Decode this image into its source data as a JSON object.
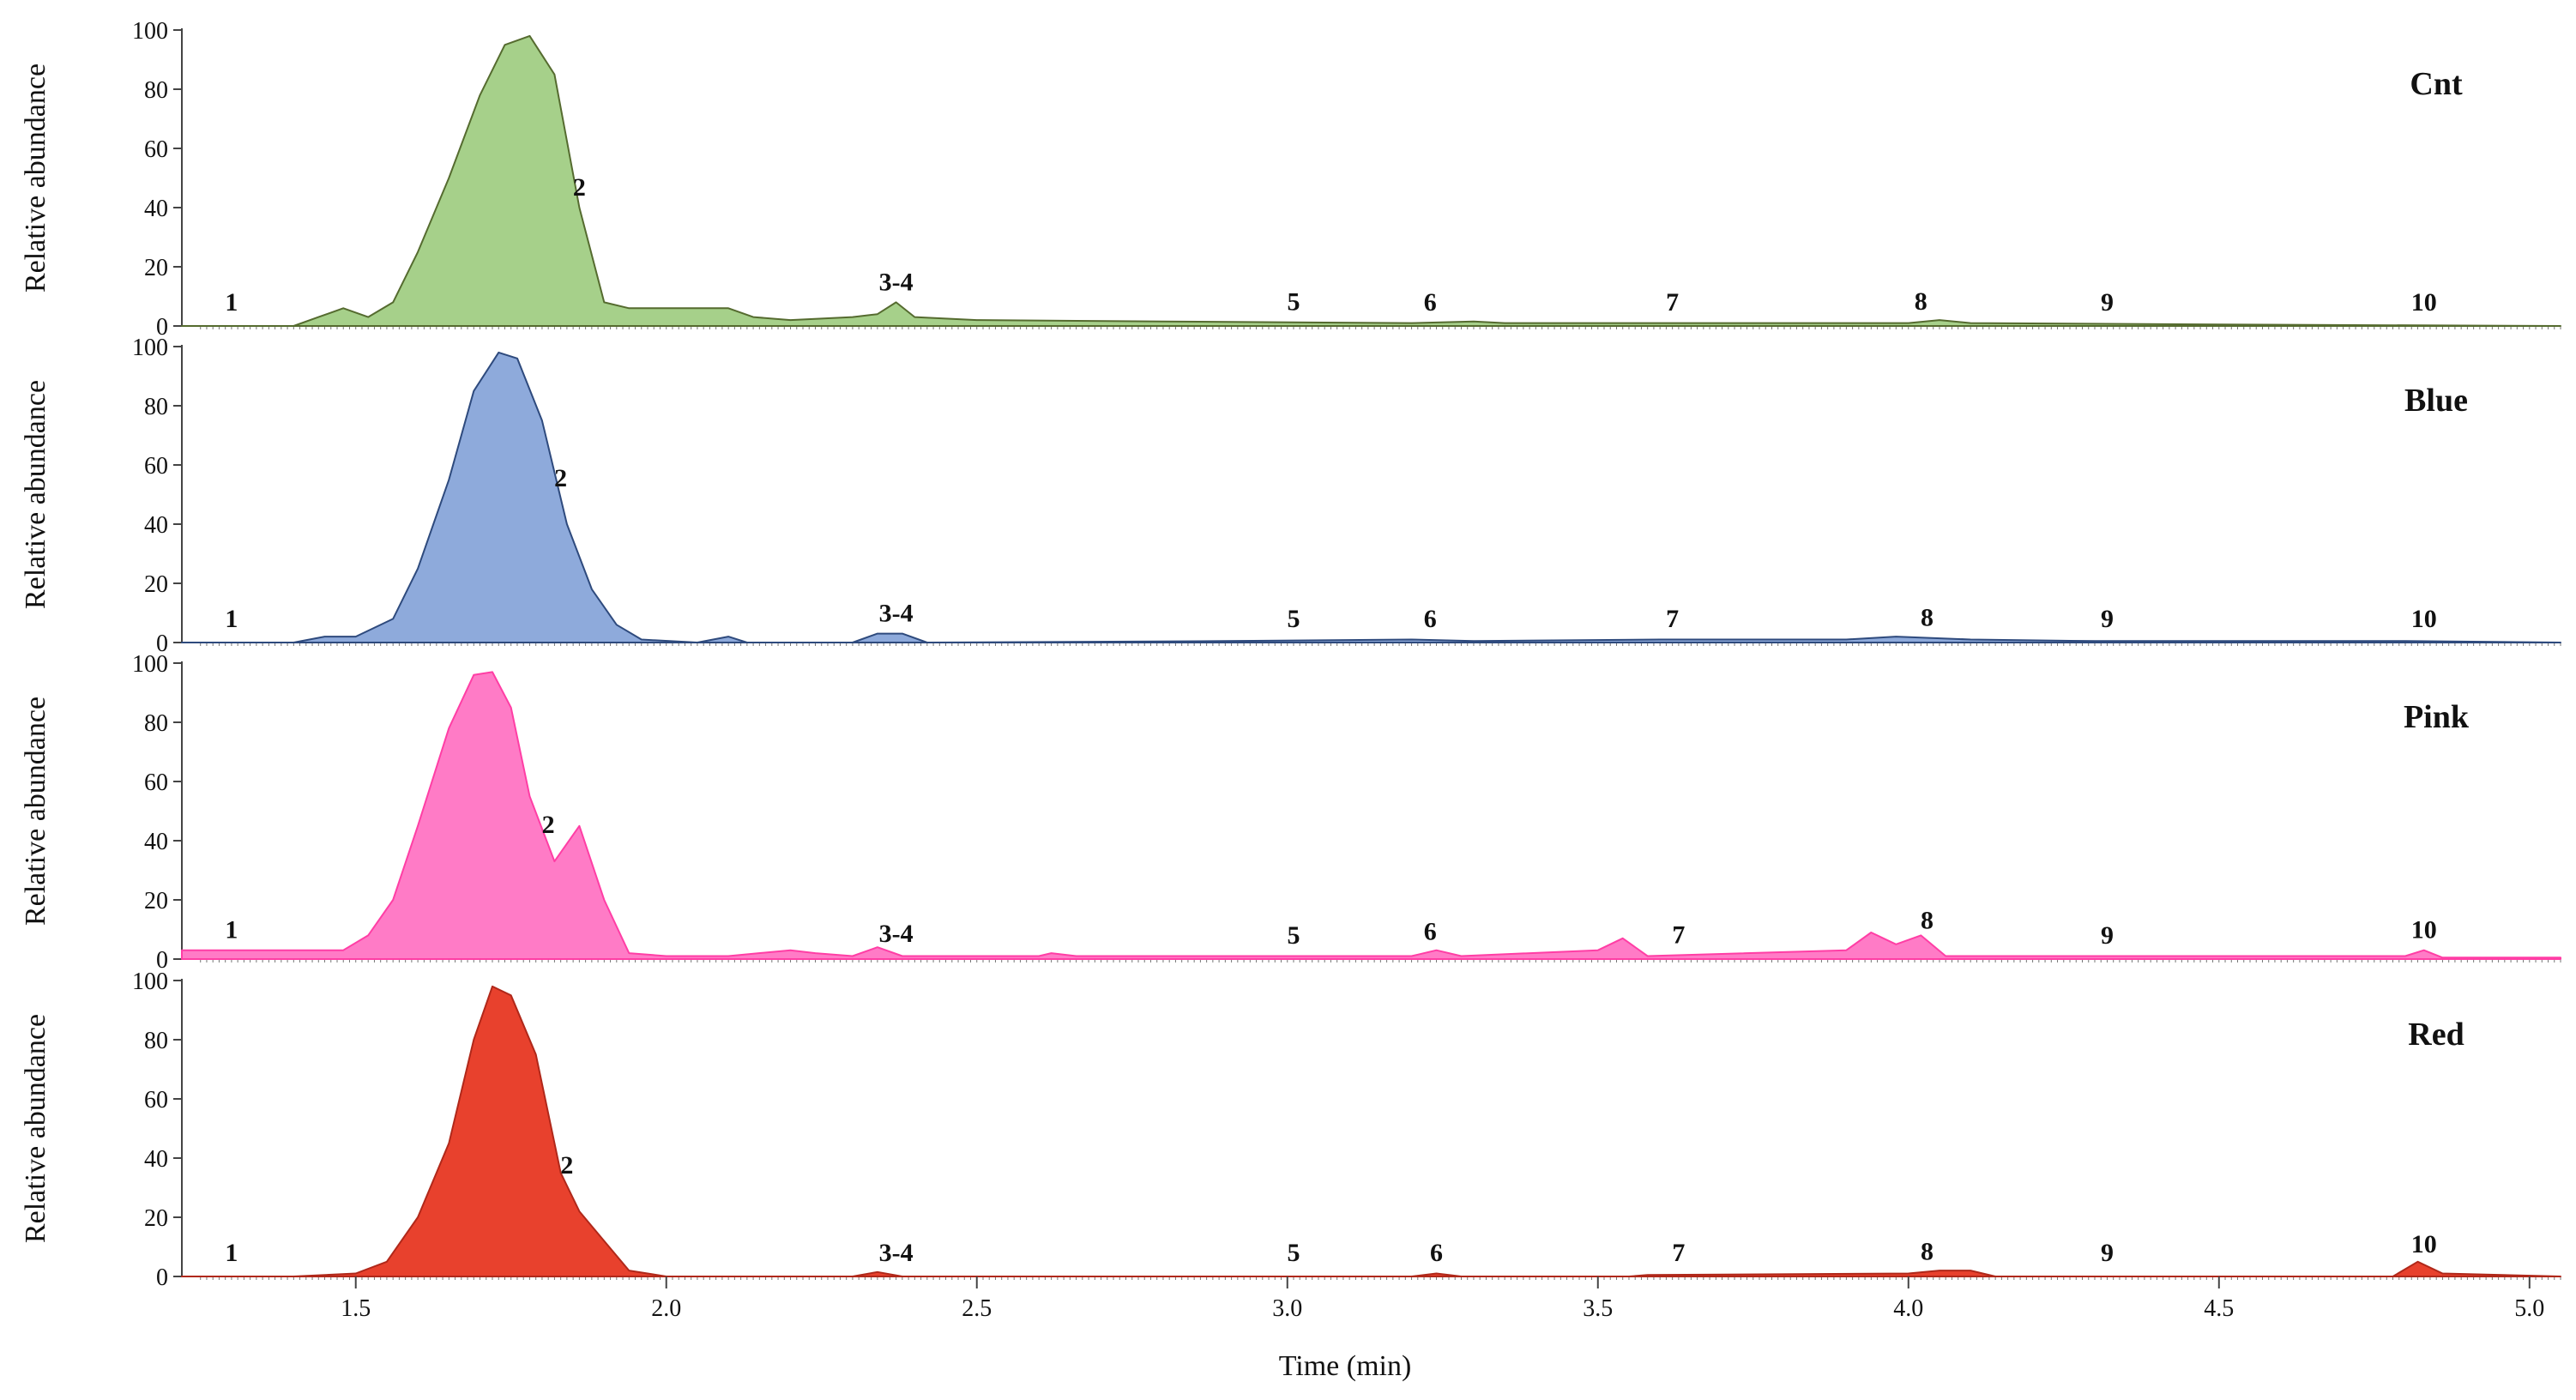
{
  "chart_data": [
    {
      "type": "area",
      "name": "Cnt",
      "color": "#a6d08a",
      "stroke": "#556b2f",
      "ylabel": "Relative abundance",
      "ylim": [
        0,
        100
      ],
      "yticks": [
        "0",
        "20",
        "40",
        "60",
        "80",
        "100"
      ],
      "points": [
        [
          1.22,
          0
        ],
        [
          1.4,
          0
        ],
        [
          1.44,
          3
        ],
        [
          1.48,
          6
        ],
        [
          1.52,
          3
        ],
        [
          1.56,
          8
        ],
        [
          1.6,
          25
        ],
        [
          1.65,
          50
        ],
        [
          1.7,
          78
        ],
        [
          1.74,
          95
        ],
        [
          1.78,
          98
        ],
        [
          1.82,
          85
        ],
        [
          1.86,
          40
        ],
        [
          1.9,
          8
        ],
        [
          1.94,
          6
        ],
        [
          2.0,
          6
        ],
        [
          2.06,
          6
        ],
        [
          2.1,
          6
        ],
        [
          2.14,
          3
        ],
        [
          2.2,
          2
        ],
        [
          2.3,
          3
        ],
        [
          2.34,
          4
        ],
        [
          2.37,
          8
        ],
        [
          2.4,
          3
        ],
        [
          2.5,
          2
        ],
        [
          2.8,
          1.5
        ],
        [
          3.2,
          1
        ],
        [
          3.3,
          1.5
        ],
        [
          3.35,
          1
        ],
        [
          4.0,
          1
        ],
        [
          4.05,
          2
        ],
        [
          4.1,
          1
        ],
        [
          4.5,
          0.5
        ],
        [
          5.05,
          0
        ]
      ],
      "peaks": [
        {
          "label": "1",
          "x": 1.3
        },
        {
          "label": "2",
          "x": 1.86
        },
        {
          "label": "3-4",
          "x": 2.37
        },
        {
          "label": "5",
          "x": 3.01
        },
        {
          "label": "6",
          "x": 3.23
        },
        {
          "label": "7",
          "x": 3.62
        },
        {
          "label": "8",
          "x": 4.02
        },
        {
          "label": "9",
          "x": 4.32
        },
        {
          "label": "10",
          "x": 4.83
        }
      ]
    },
    {
      "type": "area",
      "name": "Blue",
      "color": "#8eaadb",
      "stroke": "#2e4a7d",
      "ylabel": "Relative abundance",
      "ylim": [
        0,
        100
      ],
      "yticks": [
        "0",
        "20",
        "40",
        "60",
        "80",
        "100"
      ],
      "points": [
        [
          1.22,
          0
        ],
        [
          1.4,
          0
        ],
        [
          1.45,
          2
        ],
        [
          1.5,
          2
        ],
        [
          1.56,
          8
        ],
        [
          1.6,
          25
        ],
        [
          1.65,
          55
        ],
        [
          1.69,
          85
        ],
        [
          1.73,
          98
        ],
        [
          1.76,
          96
        ],
        [
          1.8,
          75
        ],
        [
          1.84,
          40
        ],
        [
          1.88,
          18
        ],
        [
          1.92,
          6
        ],
        [
          1.96,
          1
        ],
        [
          2.05,
          0
        ],
        [
          2.1,
          2
        ],
        [
          2.13,
          0
        ],
        [
          2.3,
          0
        ],
        [
          2.34,
          3
        ],
        [
          2.38,
          3
        ],
        [
          2.42,
          0
        ],
        [
          2.9,
          0.5
        ],
        [
          3.2,
          1
        ],
        [
          3.3,
          0.5
        ],
        [
          3.6,
          1
        ],
        [
          3.9,
          1
        ],
        [
          3.98,
          2
        ],
        [
          4.1,
          1
        ],
        [
          4.3,
          0.5
        ],
        [
          4.8,
          0.5
        ],
        [
          5.05,
          0
        ]
      ],
      "peaks": [
        {
          "label": "1",
          "x": 1.3
        },
        {
          "label": "2",
          "x": 1.83
        },
        {
          "label": "3-4",
          "x": 2.37
        },
        {
          "label": "5",
          "x": 3.01
        },
        {
          "label": "6",
          "x": 3.23
        },
        {
          "label": "7",
          "x": 3.62
        },
        {
          "label": "8",
          "x": 4.03
        },
        {
          "label": "9",
          "x": 4.32
        },
        {
          "label": "10",
          "x": 4.83
        }
      ]
    },
    {
      "type": "area",
      "name": "Pink",
      "color": "#ff7bc6",
      "stroke": "#ff3ea5",
      "ylabel": "Relative abundance",
      "ylim": [
        0,
        100
      ],
      "yticks": [
        "0",
        "20",
        "40",
        "60",
        "80",
        "100"
      ],
      "points": [
        [
          1.22,
          3
        ],
        [
          1.3,
          3
        ],
        [
          1.42,
          3
        ],
        [
          1.48,
          3
        ],
        [
          1.52,
          8
        ],
        [
          1.56,
          20
        ],
        [
          1.6,
          45
        ],
        [
          1.65,
          78
        ],
        [
          1.69,
          96
        ],
        [
          1.72,
          97
        ],
        [
          1.75,
          85
        ],
        [
          1.78,
          55
        ],
        [
          1.82,
          33
        ],
        [
          1.86,
          45
        ],
        [
          1.9,
          20
        ],
        [
          1.94,
          2
        ],
        [
          2.0,
          1
        ],
        [
          2.1,
          1
        ],
        [
          2.2,
          3
        ],
        [
          2.24,
          2
        ],
        [
          2.3,
          1
        ],
        [
          2.34,
          4
        ],
        [
          2.38,
          1
        ],
        [
          2.6,
          1
        ],
        [
          2.62,
          2
        ],
        [
          2.66,
          1
        ],
        [
          3.2,
          1
        ],
        [
          3.24,
          3
        ],
        [
          3.28,
          1
        ],
        [
          3.5,
          3
        ],
        [
          3.54,
          7
        ],
        [
          3.58,
          1
        ],
        [
          3.9,
          3
        ],
        [
          3.94,
          9
        ],
        [
          3.98,
          5
        ],
        [
          4.02,
          8
        ],
        [
          4.06,
          1
        ],
        [
          4.3,
          1
        ],
        [
          4.8,
          1
        ],
        [
          4.83,
          3
        ],
        [
          4.86,
          0.5
        ],
        [
          5.05,
          0.5
        ]
      ],
      "peaks": [
        {
          "label": "1",
          "x": 1.3
        },
        {
          "label": "2",
          "x": 1.81
        },
        {
          "label": "3-4",
          "x": 2.37
        },
        {
          "label": "5",
          "x": 3.01
        },
        {
          "label": "6",
          "x": 3.23
        },
        {
          "label": "7",
          "x": 3.63
        },
        {
          "label": "8",
          "x": 4.03
        },
        {
          "label": "9",
          "x": 4.32
        },
        {
          "label": "10",
          "x": 4.83
        }
      ]
    },
    {
      "type": "area",
      "name": "Red",
      "color": "#e8412d",
      "stroke": "#b0281a",
      "ylabel": "Relative abundance",
      "ylim": [
        0,
        100
      ],
      "yticks": [
        "0",
        "20",
        "40",
        "60",
        "80",
        "100"
      ],
      "points": [
        [
          1.22,
          0
        ],
        [
          1.4,
          0
        ],
        [
          1.5,
          1
        ],
        [
          1.55,
          5
        ],
        [
          1.6,
          20
        ],
        [
          1.65,
          45
        ],
        [
          1.69,
          80
        ],
        [
          1.72,
          98
        ],
        [
          1.75,
          95
        ],
        [
          1.79,
          75
        ],
        [
          1.83,
          35
        ],
        [
          1.86,
          22
        ],
        [
          1.9,
          12
        ],
        [
          1.94,
          2
        ],
        [
          2.0,
          0
        ],
        [
          2.3,
          0
        ],
        [
          2.34,
          1.5
        ],
        [
          2.38,
          0
        ],
        [
          3.2,
          0
        ],
        [
          3.24,
          1
        ],
        [
          3.28,
          0
        ],
        [
          3.55,
          0
        ],
        [
          3.58,
          0.5
        ],
        [
          4.0,
          1
        ],
        [
          4.05,
          2
        ],
        [
          4.1,
          2
        ],
        [
          4.14,
          0
        ],
        [
          4.78,
          0
        ],
        [
          4.82,
          5
        ],
        [
          4.86,
          1
        ],
        [
          5.05,
          0
        ]
      ],
      "peaks": [
        {
          "label": "1",
          "x": 1.3
        },
        {
          "label": "2",
          "x": 1.84
        },
        {
          "label": "3-4",
          "x": 2.37
        },
        {
          "label": "5",
          "x": 3.01
        },
        {
          "label": "6",
          "x": 3.24
        },
        {
          "label": "7",
          "x": 3.63
        },
        {
          "label": "8",
          "x": 4.03
        },
        {
          "label": "9",
          "x": 4.32
        },
        {
          "label": "10",
          "x": 4.83
        }
      ]
    }
  ],
  "x_axis": {
    "label": "Time (min)",
    "range": [
      1.22,
      5.05
    ],
    "ticks": [
      {
        "value": 1.5,
        "label": "1.5"
      },
      {
        "value": 2.0,
        "label": "2.0"
      },
      {
        "value": 2.5,
        "label": "2.5"
      },
      {
        "value": 3.0,
        "label": "3.0"
      },
      {
        "value": 3.5,
        "label": "3.5"
      },
      {
        "value": 4.0,
        "label": "4.0"
      },
      {
        "value": 4.5,
        "label": "4.5"
      },
      {
        "value": 5.0,
        "label": "5.0"
      }
    ]
  }
}
